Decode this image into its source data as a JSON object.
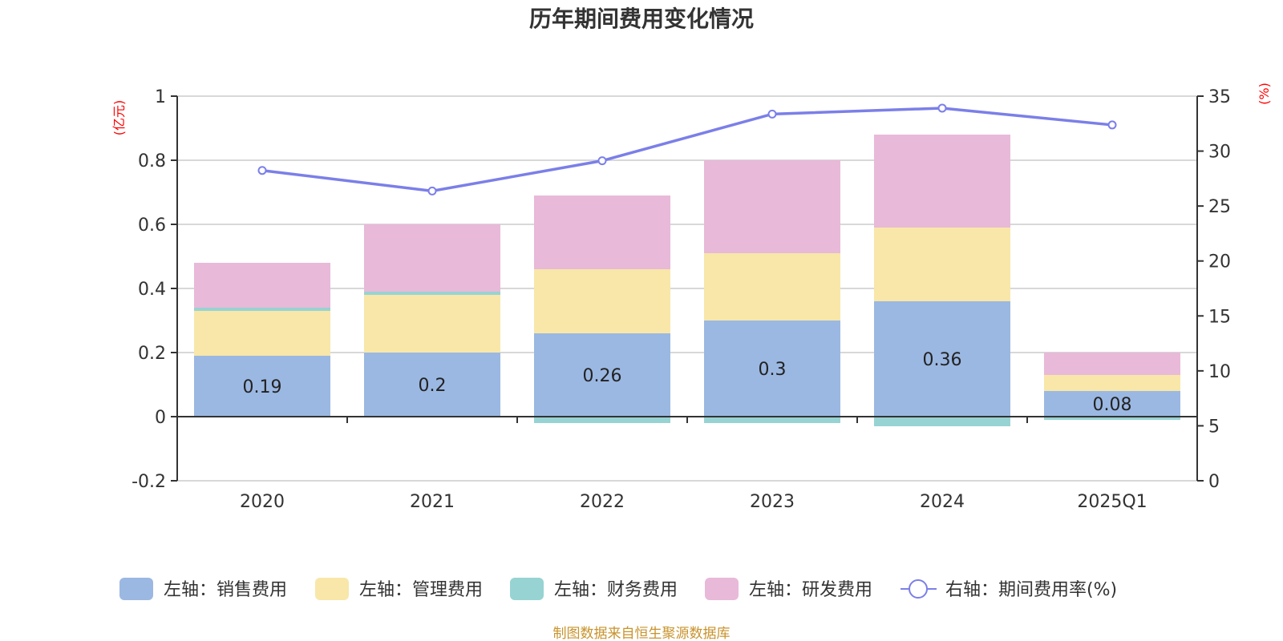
{
  "chart_data": {
    "type": "bar",
    "title": "历年期间费用变化情况",
    "categories": [
      "2020",
      "2021",
      "2022",
      "2023",
      "2024",
      "2025Q1"
    ],
    "left_axis": {
      "unit": "(亿元)",
      "range": [
        -0.2,
        1
      ],
      "ticks": [
        "-0.2",
        "0",
        "0.2",
        "0.4",
        "0.6",
        "0.8",
        "1"
      ],
      "tick_values": [
        -0.2,
        0,
        0.2,
        0.4,
        0.6,
        0.8,
        1
      ]
    },
    "right_axis": {
      "unit": "(%)",
      "range": [
        0,
        35
      ],
      "ticks": [
        "0",
        "5",
        "10",
        "15",
        "20",
        "25",
        "30",
        "35"
      ],
      "tick_values": [
        0,
        5,
        10,
        15,
        20,
        25,
        30,
        35
      ]
    },
    "grid": true,
    "series": [
      {
        "name": "左轴：销售费用",
        "type": "bar",
        "axis": "left",
        "color": "#9bb8e2",
        "values": [
          0.19,
          0.2,
          0.26,
          0.3,
          0.36,
          0.08
        ],
        "labels": [
          "0.19",
          "0.2",
          "0.26",
          "0.3",
          "0.36",
          "0.08"
        ]
      },
      {
        "name": "左轴：管理费用",
        "type": "bar",
        "axis": "left",
        "color": "#f8e7a9",
        "values": [
          0.14,
          0.18,
          0.2,
          0.21,
          0.23,
          0.05
        ]
      },
      {
        "name": "左轴：财务费用",
        "type": "bar",
        "axis": "left",
        "color": "#97d3d3",
        "values": [
          0.01,
          0.01,
          -0.02,
          -0.02,
          -0.03,
          -0.01
        ]
      },
      {
        "name": "左轴：研发费用",
        "type": "bar",
        "axis": "left",
        "color": "#e8b9d8",
        "values": [
          0.14,
          0.21,
          0.23,
          0.29,
          0.29,
          0.07
        ]
      },
      {
        "name": "右轴：期间费用率(%)",
        "type": "line",
        "axis": "right",
        "color": "#7b7fe8",
        "values": [
          28.24,
          26.37,
          29.12,
          33.37,
          33.91,
          32.38
        ]
      }
    ],
    "legend_position": "bottom"
  },
  "footer": {
    "source": "制图数据来自恒生聚源数据库",
    "color": "#c8932c"
  }
}
